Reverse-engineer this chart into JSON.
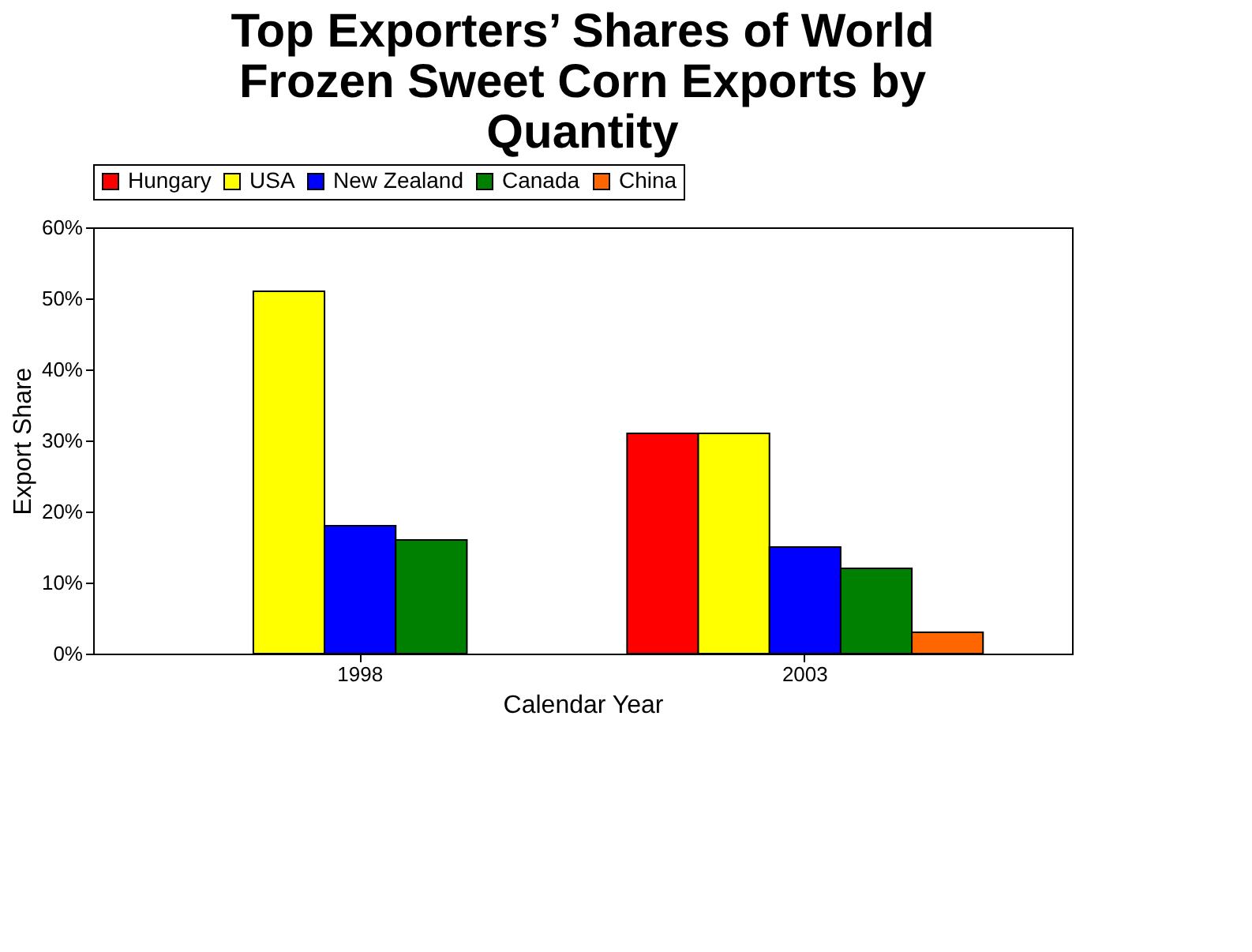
{
  "chart_data": {
    "type": "bar",
    "title": "Top Exporters’ Shares of World Frozen Sweet Corn Exports by Quantity",
    "xlabel": "Calendar Year",
    "ylabel": "Export Share",
    "categories": [
      "1998",
      "2003"
    ],
    "series": [
      {
        "name": "Hungary",
        "color": "#ff0000",
        "values": [
          null,
          31
        ]
      },
      {
        "name": "USA",
        "color": "#ffff00",
        "values": [
          51,
          31
        ]
      },
      {
        "name": "New Zealand",
        "color": "#0000ff",
        "values": [
          18,
          15
        ]
      },
      {
        "name": "Canada",
        "color": "#008000",
        "values": [
          16,
          12
        ]
      },
      {
        "name": "China",
        "color": "#ff6600",
        "values": [
          null,
          3
        ]
      }
    ],
    "ylim": [
      0,
      60
    ],
    "yticks": [
      {
        "value": 0,
        "label": "0%"
      },
      {
        "value": 10,
        "label": "10%"
      },
      {
        "value": 20,
        "label": "20%"
      },
      {
        "value": 30,
        "label": "30%"
      },
      {
        "value": 40,
        "label": "40%"
      },
      {
        "value": 50,
        "label": "50%"
      },
      {
        "value": 60,
        "label": "60%"
      }
    ],
    "grid": false,
    "legend": "top"
  }
}
